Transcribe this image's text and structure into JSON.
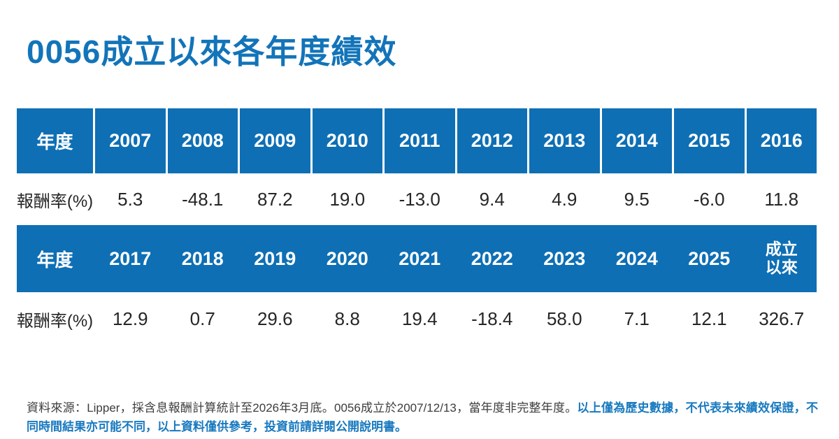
{
  "title": "0056成立以來各年度績效",
  "colors": {
    "title_blue": "#1274B9",
    "header_blue": "#0E6FB4",
    "footnote_blue": "#1879BF",
    "value_text": "#262626",
    "footnote_gray": "#3D3D3D"
  },
  "table": {
    "row_label_header": "年度",
    "row_label_values": "報酬率(%)",
    "sections": [
      {
        "years": [
          "2007",
          "2008",
          "2009",
          "2010",
          "2011",
          "2012",
          "2013",
          "2014",
          "2015",
          "2016"
        ],
        "returns": [
          "5.3",
          "-48.1",
          "87.2",
          "19.0",
          "-13.0",
          "9.4",
          "4.9",
          "9.5",
          "-6.0",
          "11.8"
        ]
      },
      {
        "years": [
          "2017",
          "2018",
          "2019",
          "2020",
          "2021",
          "2022",
          "2023",
          "2024",
          "2025",
          "成立以來"
        ],
        "returns": [
          "12.9",
          "0.7",
          "29.6",
          "8.8",
          "19.4",
          "-18.4",
          "58.0",
          "7.1",
          "12.1",
          "326.7"
        ]
      }
    ]
  },
  "footnote": {
    "source": "資料來源：Lipper，採含息報酬計算統計至2026年3月底。0056成立於2007/12/13，當年度非完整年度。",
    "disclaimer": "以上僅為歷史數據，不代表未來績效保證，不同時間結果亦可能不同，以上資料僅供參考，投資前請詳閱公開說明書。"
  },
  "chart_data": {
    "type": "table",
    "title": "0056成立以來各年度績效",
    "row_header": "年度",
    "row_values_label": "報酬率(%)",
    "categories": [
      "2007",
      "2008",
      "2009",
      "2010",
      "2011",
      "2012",
      "2013",
      "2014",
      "2015",
      "2016",
      "2017",
      "2018",
      "2019",
      "2020",
      "2021",
      "2022",
      "2023",
      "2024",
      "2025",
      "成立以來"
    ],
    "series": [
      {
        "name": "報酬率(%)",
        "values": [
          5.3,
          -48.1,
          87.2,
          19.0,
          -13.0,
          9.4,
          4.9,
          9.5,
          -6.0,
          11.8,
          12.9,
          0.7,
          29.6,
          8.8,
          19.4,
          -18.4,
          58.0,
          7.1,
          12.1,
          326.7
        ]
      }
    ]
  }
}
